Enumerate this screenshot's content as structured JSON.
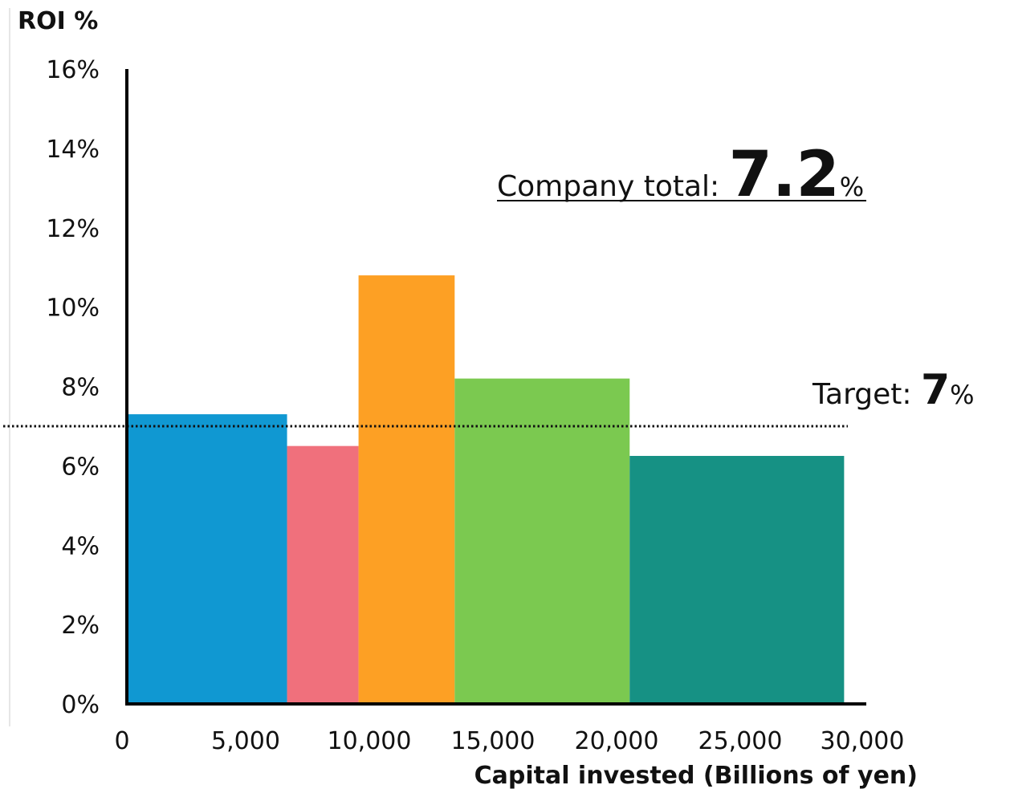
{
  "chart_data": {
    "type": "bar",
    "title": "",
    "ylabel": "ROI %",
    "xlabel": "Capital invested (Billions of yen)",
    "xlim": [
      0,
      30000
    ],
    "ylim": [
      0,
      16
    ],
    "x_ticks": [
      0,
      5000,
      10000,
      15000,
      20000,
      25000,
      30000
    ],
    "x_tick_labels": [
      "0",
      "5,000",
      "10,000",
      "15,000",
      "20,000",
      "25,000",
      "30,000"
    ],
    "y_ticks": [
      0,
      2,
      4,
      6,
      8,
      10,
      12,
      14,
      16
    ],
    "y_tick_labels": [
      "0%",
      "2%",
      "4%",
      "6%",
      "8%",
      "10%",
      "12%",
      "14%",
      "16%"
    ],
    "grid": false,
    "bars": [
      {
        "x_start": 0,
        "x_end": 6500,
        "value": 7.3,
        "color": "#1098d2"
      },
      {
        "x_start": 6500,
        "x_end": 9400,
        "value": 6.5,
        "color": "#f0707c"
      },
      {
        "x_start": 9400,
        "x_end": 13300,
        "value": 10.8,
        "color": "#fda024"
      },
      {
        "x_start": 13300,
        "x_end": 20400,
        "value": 8.2,
        "color": "#7bc950"
      },
      {
        "x_start": 20400,
        "x_end": 29100,
        "value": 6.25,
        "color": "#169184"
      }
    ],
    "reference_line": {
      "value": 7,
      "style": "dotted"
    },
    "annotations": {
      "company_total": {
        "label": "Company total: ",
        "value": "7.2",
        "unit": "%"
      },
      "target": {
        "label": "Target: ",
        "value": "7",
        "unit": "%"
      }
    }
  }
}
